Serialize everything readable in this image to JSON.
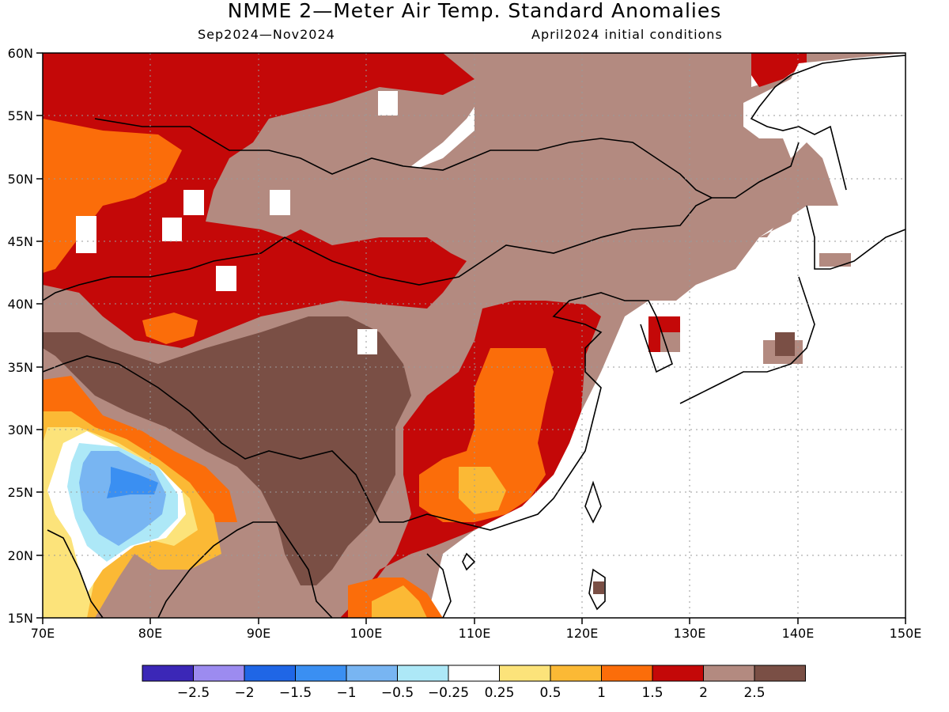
{
  "header": {
    "title": "NMME 2—Meter Air Temp. Standard Anomalies",
    "period": "Sep2024—Nov2024",
    "init": "April2024 initial conditions"
  },
  "axes": {
    "lon_labels": [
      "70E",
      "80E",
      "90E",
      "100E",
      "110E",
      "120E",
      "130E",
      "140E",
      "150E"
    ],
    "lat_labels": [
      "60N",
      "55N",
      "50N",
      "45N",
      "40N",
      "35N",
      "30N",
      "25N",
      "20N",
      "15N"
    ]
  },
  "colorbar": {
    "colors": [
      "#3b27b7",
      "#9c8bf0",
      "#1f66e6",
      "#3a8ff2",
      "#78b5f2",
      "#ade8f7",
      "#ffffff",
      "#fce37a",
      "#fbb935",
      "#fb6d0a",
      "#c40808",
      "#b38a80",
      "#7a4f45"
    ],
    "labels": [
      "−2.5",
      "−2",
      "−1.5",
      "−1",
      "−0.5",
      "−0.25",
      "0.25",
      "0.5",
      "1",
      "1.5",
      "2",
      "2.5"
    ]
  },
  "regions": {
    "central_high_anomaly": "#7a4f45",
    "north_mongolia": "#b38a80",
    "kazakh_belt": "#c40808",
    "india_negative": "#78b5f2",
    "east_china": "#fb6d0a"
  }
}
